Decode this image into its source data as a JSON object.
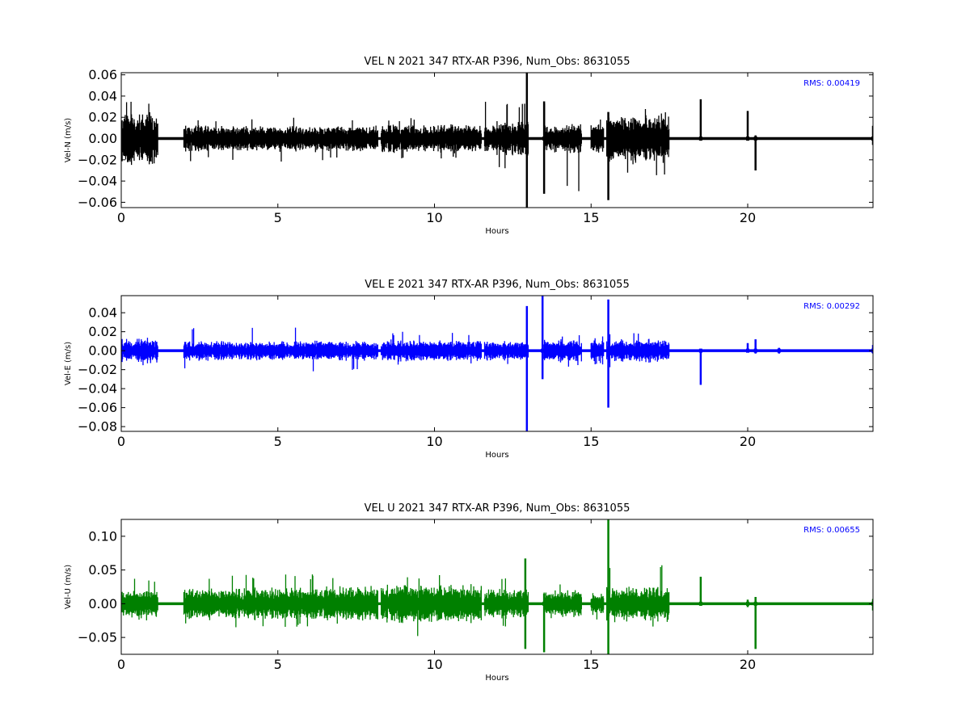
{
  "chart_data": [
    {
      "type": "line",
      "title": "VEL N 2021 347 RTX-AR  P396, Num_Obs: 8631055",
      "xlabel": "Hours",
      "ylabel": "Vel-N (m/s)",
      "xlim": [
        0,
        24
      ],
      "ylim": [
        -0.065,
        0.062
      ],
      "xticks": [
        0,
        5,
        10,
        15,
        20
      ],
      "xtick_labels": [
        "0",
        "5",
        "10",
        "15",
        "20"
      ],
      "yticks": [
        -0.06,
        -0.04,
        -0.02,
        0.0,
        0.02,
        0.04,
        0.06
      ],
      "ytick_labels": [
        "−0.06",
        "−0.04",
        "−0.02",
        "0.00",
        "0.02",
        "0.04",
        "0.06"
      ],
      "annotation": "RMS:  0.00419",
      "color": "#000000",
      "annotation_color": "#0000ff",
      "grid": false,
      "series": [
        {
          "segments": [
            {
              "x0": 0.0,
              "x1": 1.17,
              "amp": 0.028,
              "max": 0.04,
              "min": -0.037
            },
            {
              "x0": 2.0,
              "x1": 8.2,
              "amp": 0.013,
              "max": 0.02,
              "min": -0.022
            },
            {
              "x0": 8.3,
              "x1": 11.5,
              "amp": 0.014,
              "max": 0.02,
              "min": -0.02
            },
            {
              "x0": 11.6,
              "x1": 13.0,
              "amp": 0.017,
              "max": 0.035,
              "min": -0.03
            },
            {
              "x0": 13.5,
              "x1": 14.7,
              "amp": 0.015,
              "max": 0.035,
              "min": -0.05
            },
            {
              "x0": 15.0,
              "x1": 15.4,
              "amp": 0.014,
              "max": 0.018,
              "min": -0.02
            },
            {
              "x0": 15.5,
              "x1": 17.5,
              "amp": 0.025,
              "max": 0.03,
              "min": -0.035
            }
          ],
          "spikes": [
            {
              "x": 12.95,
              "min": -0.065,
              "max": 0.062
            },
            {
              "x": 13.5,
              "min": -0.052,
              "max": 0.035
            },
            {
              "x": 15.55,
              "min": -0.058,
              "max": 0.025
            },
            {
              "x": 18.5,
              "min": -0.002,
              "max": 0.037
            },
            {
              "x": 20.0,
              "min": -0.002,
              "max": 0.026
            },
            {
              "x": 20.25,
              "min": -0.03,
              "max": 0.003
            },
            {
              "x": 24.0,
              "min": -0.006,
              "max": 0.012
            }
          ]
        }
      ]
    },
    {
      "type": "line",
      "title": "VEL E 2021 347 RTX-AR  P396, Num_Obs: 8631055",
      "xlabel": "Hours",
      "ylabel": "Vel-E (m/s)",
      "xlim": [
        0,
        24
      ],
      "ylim": [
        -0.085,
        0.058
      ],
      "xticks": [
        0,
        5,
        10,
        15,
        20
      ],
      "xtick_labels": [
        "0",
        "5",
        "10",
        "15",
        "20"
      ],
      "yticks": [
        -0.08,
        -0.06,
        -0.04,
        -0.02,
        0.0,
        0.02,
        0.04
      ],
      "ytick_labels": [
        "−0.08",
        "−0.06",
        "−0.04",
        "−0.02",
        "0.00",
        "0.02",
        "0.04"
      ],
      "annotation": "RMS:  0.00292",
      "color": "#0000ff",
      "annotation_color": "#0000ff",
      "grid": false,
      "series": [
        {
          "segments": [
            {
              "x0": 0.0,
              "x1": 1.17,
              "amp": 0.014,
              "max": 0.022,
              "min": -0.018
            },
            {
              "x0": 2.0,
              "x1": 8.2,
              "amp": 0.011,
              "max": 0.025,
              "min": -0.022
            },
            {
              "x0": 8.3,
              "x1": 11.5,
              "amp": 0.012,
              "max": 0.02,
              "min": -0.016
            },
            {
              "x0": 11.6,
              "x1": 13.0,
              "amp": 0.011,
              "max": 0.015,
              "min": -0.015
            },
            {
              "x0": 13.5,
              "x1": 14.7,
              "amp": 0.013,
              "max": 0.018,
              "min": -0.018
            },
            {
              "x0": 15.0,
              "x1": 15.4,
              "amp": 0.012,
              "max": 0.015,
              "min": -0.015
            },
            {
              "x0": 15.5,
              "x1": 17.5,
              "amp": 0.013,
              "max": 0.02,
              "min": -0.018
            }
          ],
          "spikes": [
            {
              "x": 12.95,
              "min": -0.085,
              "max": 0.047
            },
            {
              "x": 13.45,
              "min": -0.03,
              "max": 0.058
            },
            {
              "x": 15.55,
              "min": -0.06,
              "max": 0.054
            },
            {
              "x": 18.5,
              "min": -0.036,
              "max": 0.002
            },
            {
              "x": 20.0,
              "min": -0.002,
              "max": 0.008
            },
            {
              "x": 20.25,
              "min": -0.003,
              "max": 0.012
            },
            {
              "x": 21.0,
              "min": -0.003,
              "max": 0.003
            },
            {
              "x": 24.0,
              "min": -0.003,
              "max": 0.006
            }
          ]
        }
      ]
    },
    {
      "type": "line",
      "title": "VEL U 2021 347 RTX-AR  P396, Num_Obs: 8631055",
      "xlabel": "Hours",
      "ylabel": "Vel-U (m/s)",
      "xlim": [
        0,
        24
      ],
      "ylim": [
        -0.075,
        0.125
      ],
      "xticks": [
        0,
        5,
        10,
        15,
        20
      ],
      "xtick_labels": [
        "0",
        "5",
        "10",
        "15",
        "20"
      ],
      "yticks": [
        -0.05,
        0.0,
        0.05,
        0.1
      ],
      "ytick_labels": [
        "−0.05",
        "0.00",
        "0.05",
        "0.10"
      ],
      "annotation": "RMS:  0.00655",
      "color": "#008000",
      "annotation_color": "#0000ff",
      "grid": false,
      "series": [
        {
          "segments": [
            {
              "x0": 0.0,
              "x1": 1.17,
              "amp": 0.022,
              "max": 0.04,
              "min": -0.025
            },
            {
              "x0": 2.0,
              "x1": 6.5,
              "amp": 0.025,
              "max": 0.045,
              "min": -0.035
            },
            {
              "x0": 6.5,
              "x1": 8.2,
              "amp": 0.028,
              "max": 0.04,
              "min": -0.035
            },
            {
              "x0": 8.3,
              "x1": 11.5,
              "amp": 0.03,
              "max": 0.045,
              "min": -0.05
            },
            {
              "x0": 11.6,
              "x1": 13.0,
              "amp": 0.025,
              "max": 0.04,
              "min": -0.035
            },
            {
              "x0": 13.5,
              "x1": 14.7,
              "amp": 0.022,
              "max": 0.03,
              "min": -0.04
            },
            {
              "x0": 15.0,
              "x1": 15.4,
              "amp": 0.018,
              "max": 0.02,
              "min": -0.025
            },
            {
              "x0": 15.5,
              "x1": 17.5,
              "amp": 0.028,
              "max": 0.06,
              "min": -0.04
            }
          ],
          "spikes": [
            {
              "x": 12.9,
              "min": -0.067,
              "max": 0.067
            },
            {
              "x": 13.5,
              "min": -0.072,
              "max": 0.015
            },
            {
              "x": 15.55,
              "min": -0.075,
              "max": 0.125
            },
            {
              "x": 18.5,
              "min": -0.003,
              "max": 0.04
            },
            {
              "x": 20.0,
              "min": -0.005,
              "max": 0.006
            },
            {
              "x": 20.25,
              "min": -0.067,
              "max": 0.01
            },
            {
              "x": 24.0,
              "min": -0.01,
              "max": 0.007
            }
          ]
        }
      ]
    }
  ]
}
